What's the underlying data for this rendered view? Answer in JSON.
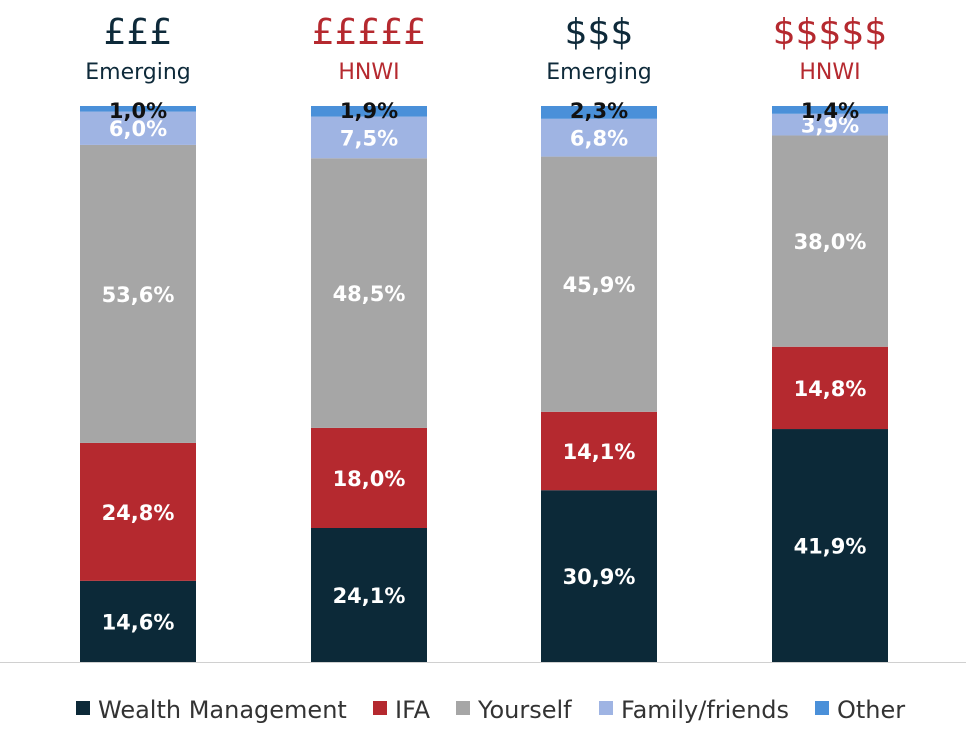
{
  "chart_data": {
    "type": "bar",
    "stacked": true,
    "categories": [
      {
        "symbol": "£££",
        "label": "Emerging",
        "color": "#0e2a3a"
      },
      {
        "symbol": "£££££",
        "label": "HNWI",
        "color": "#b5292f"
      },
      {
        "symbol": "$$$",
        "label": "Emerging",
        "color": "#0e2a3a"
      },
      {
        "symbol": "$$$$$",
        "label": "HNWI",
        "color": "#b5292f"
      }
    ],
    "series": [
      {
        "name": "Wealth Management",
        "color": "#0c2938",
        "label_color": "#ffffff",
        "values": [
          14.6,
          24.1,
          30.9,
          41.9
        ],
        "labels": [
          "14,6%",
          "24,1%",
          "30,9%",
          "41,9%"
        ]
      },
      {
        "name": "IFA",
        "color": "#b5292f",
        "label_color": "#ffffff",
        "values": [
          24.8,
          18.0,
          14.1,
          14.8
        ],
        "labels": [
          "24,8%",
          "18,0%",
          "14,1%",
          "14,8%"
        ]
      },
      {
        "name": "Yourself",
        "color": "#a6a6a6",
        "label_color": "#ffffff",
        "values": [
          53.6,
          48.5,
          45.9,
          38.0
        ],
        "labels": [
          "53,6%",
          "48,5%",
          "45,9%",
          "38,0%"
        ]
      },
      {
        "name": "Family/friends",
        "color": "#9fb4e3",
        "label_color": "#ffffff",
        "values": [
          6.0,
          7.5,
          6.8,
          3.9
        ],
        "labels": [
          "6,0%",
          "7,5%",
          "6,8%",
          "3,9%"
        ]
      },
      {
        "name": "Other",
        "color": "#4a90d9",
        "label_color": "#111111",
        "values": [
          1.0,
          1.9,
          2.3,
          1.4
        ],
        "labels": [
          "1,0%",
          "1,9%",
          "2,3%",
          "1,4%"
        ]
      }
    ],
    "ylim": [
      0,
      100
    ],
    "grid": false,
    "legend": "bottom"
  }
}
